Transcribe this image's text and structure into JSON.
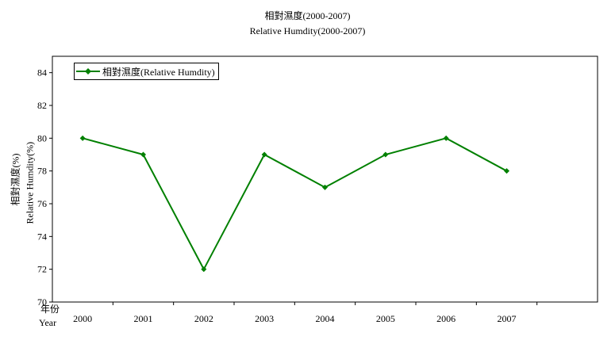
{
  "chart_data": {
    "type": "line",
    "title": "相對濕度(2000-2007)",
    "subtitle": "Relative Humdity(2000-2007)",
    "ylabel": "相對濕度(%)",
    "ylabel_en": "Relative Humdity(%)",
    "xlabel": "年份",
    "xlabel_en": "Year",
    "categories": [
      "2000",
      "2001",
      "2002",
      "2003",
      "2004",
      "2005",
      "2006",
      "2007"
    ],
    "series": [
      {
        "name": "相對濕度(Relative Humdity)",
        "values": [
          80,
          79,
          72,
          79,
          77,
          79,
          80,
          78
        ]
      }
    ],
    "ylim": [
      70,
      85
    ],
    "yticks": [
      70,
      72,
      74,
      76,
      78,
      80,
      82,
      84
    ],
    "grid": false,
    "legend": "top-left",
    "colors": {
      "series": "#008000",
      "axis": "#000000"
    }
  }
}
